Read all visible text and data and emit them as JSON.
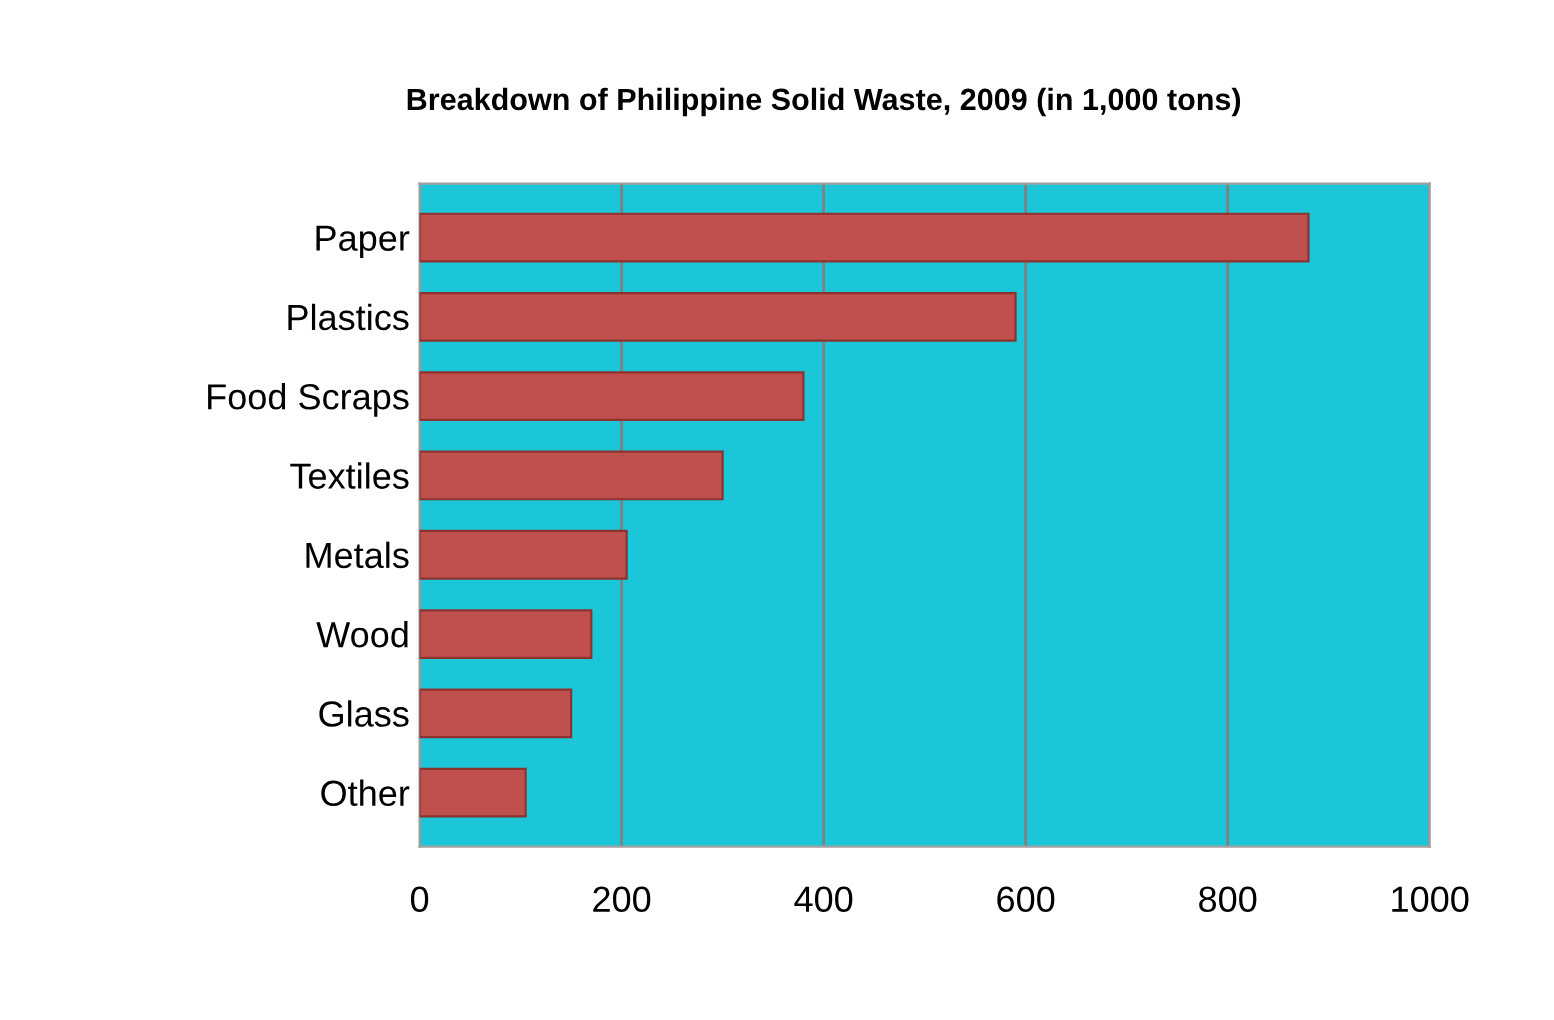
{
  "chart_data": {
    "type": "bar",
    "orientation": "horizontal",
    "title": "Breakdown of Philippine Solid Waste, 2009 (in 1,000 tons)",
    "categories": [
      "Paper",
      "Plastics",
      "Food Scraps",
      "Textiles",
      "Metals",
      "Wood",
      "Glass",
      "Other"
    ],
    "values": [
      880,
      590,
      380,
      300,
      205,
      170,
      150,
      105
    ],
    "color": "#c0504d",
    "xlim": [
      0,
      1000
    ],
    "xticks": [
      0,
      200,
      400,
      600,
      800,
      1000
    ],
    "grid": "x"
  }
}
